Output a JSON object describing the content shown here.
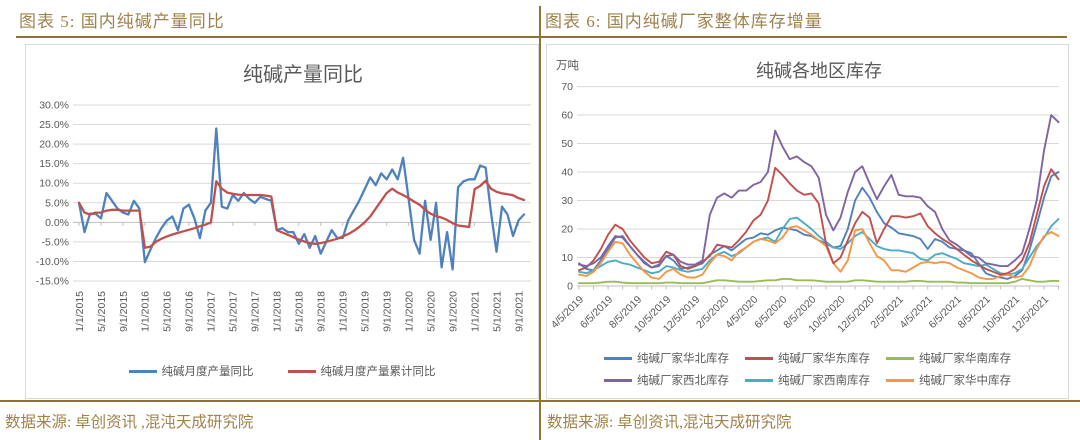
{
  "accent": {
    "gold_text": "#a0824c",
    "gold_line": "#8f7330",
    "grid": "#d9d9d9",
    "axis": "#bfbfbf",
    "label": "#595959"
  },
  "panels": [
    {
      "header": "图表 5: 国内纯碱产量同比",
      "source": "数据来源: 卓创资讯 ,混沌天成研究院"
    },
    {
      "header": "图表 6: 国内纯碱厂家整体库存增量",
      "source": "数据来源: 卓创资讯,混沌天成研究院"
    }
  ],
  "chart_data": [
    {
      "type": "line",
      "title": "纯碱产量同比",
      "ylim": [
        -15,
        30
      ],
      "ystep": 5,
      "grid": true,
      "legend_position": "bottom",
      "y_tick_labels": [
        "30.0%",
        "25.0%",
        "20.0%",
        "15.0%",
        "10.0%",
        "5.0%",
        "0.0%",
        "-5.0%",
        "-10.0%",
        "-15.0%"
      ],
      "x_labels": [
        "1/1/2015",
        "5/1/2015",
        "9/1/2015",
        "1/1/2016",
        "5/1/2016",
        "9/1/2016",
        "1/1/2017",
        "5/1/2017",
        "9/1/2017",
        "1/1/2018",
        "5/1/2018",
        "9/1/2018",
        "1/1/2019",
        "5/1/2019",
        "9/1/2019",
        "1/1/2020",
        "5/1/2020",
        "9/1/2020",
        "1/1/2021",
        "5/1/2021",
        "9/1/2021"
      ],
      "x_label_every_n_points": 4,
      "series": [
        {
          "name": "纯碱月度产量同比",
          "color": "#4F81BD",
          "values": [
            5.0,
            -2.5,
            2.2,
            2.2,
            1.0,
            7.5,
            5.5,
            3.5,
            2.5,
            2.0,
            5.5,
            3.5,
            -10.2,
            -7.0,
            -4.0,
            -1.5,
            0.5,
            1.5,
            -2.0,
            3.5,
            4.5,
            1.0,
            -4.0,
            3.0,
            5.0,
            24.0,
            4.0,
            3.5,
            7.0,
            5.5,
            7.5,
            6.0,
            5.0,
            6.5,
            6.0,
            5.5,
            -2.0,
            -1.5,
            -2.5,
            -2.5,
            -5.5,
            -3.0,
            -6.5,
            -3.5,
            -8.0,
            -5.0,
            -2.0,
            -4.0,
            -4.0,
            0.5,
            3.0,
            5.5,
            8.5,
            11.5,
            9.5,
            12.5,
            11.0,
            13.5,
            11.0,
            16.5,
            6.0,
            -4.5,
            -8.0,
            5.5,
            -4.5,
            5.0,
            -11.5,
            -2.5,
            -12.0,
            9.0,
            10.5,
            11.0,
            11.0,
            14.5,
            14.0,
            2.5,
            -7.5,
            4.0,
            2.0,
            -3.5,
            0.5,
            2.0
          ]
        },
        {
          "name": "纯碱月度产量累计同比",
          "color": "#C0504D",
          "values": [
            5.0,
            2.5,
            2.0,
            2.5,
            2.5,
            3.0,
            3.2,
            3.2,
            3.0,
            3.0,
            3.0,
            3.0,
            -6.5,
            -6.2,
            -5.0,
            -4.2,
            -3.6,
            -3.1,
            -2.7,
            -2.3,
            -1.9,
            -1.5,
            -1.0,
            -0.6,
            0.0,
            10.5,
            8.6,
            7.6,
            7.3,
            7.1,
            7.0,
            7.0,
            7.0,
            7.0,
            6.8,
            6.6,
            -2.0,
            -2.6,
            -3.2,
            -3.8,
            -4.4,
            -4.9,
            -5.3,
            -5.5,
            -5.3,
            -5.0,
            -4.6,
            -4.2,
            -3.6,
            -3.0,
            -2.2,
            -1.2,
            0.0,
            1.5,
            3.5,
            5.5,
            7.5,
            8.6,
            7.6,
            7.0,
            6.2,
            5.3,
            4.5,
            3.2,
            2.2,
            1.6,
            1.2,
            0.6,
            -0.2,
            -0.8,
            -1.0,
            -1.2,
            8.5,
            9.3,
            10.6,
            8.6,
            7.8,
            7.4,
            7.2,
            6.9,
            6.2,
            5.7
          ]
        }
      ]
    },
    {
      "type": "line",
      "title": "纯碱各地区库存",
      "unit_label": "万吨",
      "ylim": [
        0,
        70
      ],
      "ystep": 10,
      "grid": true,
      "legend_position": "bottom",
      "y_tick_labels": [
        "70",
        "60",
        "50",
        "40",
        "30",
        "20",
        "10",
        "0"
      ],
      "x_labels": [
        "4/5/2019",
        "6/5/2019",
        "8/5/2019",
        "10/5/2019",
        "12/5/2019",
        "2/5/2020",
        "4/5/2020",
        "6/5/2020",
        "8/5/2020",
        "10/5/2020",
        "12/5/2020",
        "2/5/2021",
        "4/5/2021",
        "6/5/2021",
        "8/5/2021",
        "10/5/2021",
        "12/5/2021"
      ],
      "months_per_x_label": 2,
      "points_per_month": 2,
      "series": [
        {
          "name": "纯碱厂家华北库存",
          "color": "#4F81BD",
          "values": [
            8,
            6,
            5.5,
            9,
            13,
            17,
            17.5,
            14,
            11,
            8.5,
            6.5,
            7.5,
            10.5,
            9,
            6,
            6.5,
            7,
            8,
            11,
            12.5,
            14,
            12.5,
            14.5,
            16.5,
            17,
            18.5,
            18,
            19.5,
            20.5,
            20,
            19.5,
            18,
            17.5,
            16,
            15,
            13.5,
            14,
            20,
            30,
            34.5,
            31,
            26,
            22,
            20.5,
            18.5,
            18,
            17.5,
            16.5,
            13,
            16.5,
            15.5,
            13.5,
            13,
            12.5,
            11.5,
            8,
            4.5,
            3.5,
            3,
            2.5,
            3.5,
            5.5,
            12.5,
            21.5,
            31,
            38.5,
            40
          ]
        },
        {
          "name": "纯碱厂家华东库存",
          "color": "#C0504D",
          "values": [
            5.5,
            6.5,
            9,
            13,
            18,
            21.5,
            20,
            16,
            13,
            10,
            8,
            8.5,
            12,
            11,
            7,
            6,
            7,
            8.5,
            10.5,
            14.5,
            14,
            13.5,
            16,
            19,
            23,
            25,
            30,
            41.5,
            39,
            36,
            33.5,
            32,
            32.5,
            29,
            15,
            8,
            10,
            16,
            22,
            26,
            24,
            15,
            20,
            24.5,
            24.5,
            24,
            24.5,
            25.5,
            21,
            18.5,
            16.5,
            15,
            13,
            11,
            9,
            7.5,
            6,
            5,
            4,
            4.5,
            6,
            9,
            15,
            25,
            35,
            41,
            37.5
          ]
        },
        {
          "name": "纯碱厂家华南库存",
          "color": "#9BBB59",
          "values": [
            1,
            1,
            1,
            1.2,
            1.5,
            1.5,
            1.2,
            1,
            1,
            1,
            1,
            1,
            1.2,
            1.2,
            1,
            1,
            1,
            1,
            1.5,
            2,
            2,
            1.8,
            1.5,
            1.5,
            1.5,
            1.8,
            2,
            2,
            2.5,
            2.5,
            2,
            2,
            2,
            1.8,
            1.5,
            1.5,
            1.5,
            1.5,
            2,
            2,
            1.8,
            1.5,
            1.5,
            1.5,
            1.5,
            1.5,
            1.8,
            1.8,
            1.5,
            1.5,
            1.5,
            1.5,
            1.2,
            1.2,
            1,
            1,
            1,
            1,
            1,
            1,
            1.5,
            2.5,
            2,
            1.5,
            1.5,
            1.8,
            1.8
          ]
        },
        {
          "name": "纯碱厂家西北库存",
          "color": "#8064A2",
          "values": [
            7.5,
            7,
            8,
            10,
            14,
            17.5,
            17,
            14,
            11,
            8,
            6.5,
            7,
            10.5,
            11,
            8.5,
            7.5,
            7.5,
            9,
            25,
            31,
            32.5,
            31,
            33.5,
            33.5,
            35.5,
            36.5,
            40,
            54.5,
            49,
            44.5,
            45.5,
            43.5,
            42,
            38,
            25,
            19.5,
            24,
            33,
            40,
            42,
            36,
            30.5,
            35,
            39,
            32,
            31.5,
            31.5,
            31,
            28,
            26,
            20,
            16,
            14.5,
            12.5,
            10.5,
            10,
            8,
            7.5,
            7,
            7,
            9,
            11.5,
            20,
            30,
            47.5,
            60,
            57.5
          ]
        },
        {
          "name": "纯碱厂家西南库存",
          "color": "#4BACC6",
          "values": [
            5,
            4.5,
            5.5,
            7,
            8.5,
            9,
            8,
            7.5,
            6.5,
            5.5,
            4.5,
            5,
            7,
            6.5,
            5.5,
            5,
            5.5,
            6,
            9,
            11,
            12,
            10.5,
            11.5,
            13.5,
            15.5,
            16.5,
            17,
            15.5,
            20,
            23.5,
            24,
            22,
            20,
            17.5,
            15.5,
            13.5,
            13,
            15,
            17.5,
            19,
            16.5,
            14,
            13,
            12.5,
            12.5,
            12,
            11.5,
            9.5,
            9,
            11,
            11.5,
            10.5,
            9.5,
            8,
            7.5,
            7,
            7.5,
            6,
            4.5,
            4,
            4.5,
            6,
            10,
            14,
            17,
            21,
            23.5
          ]
        },
        {
          "name": "纯碱厂家华中库存",
          "color": "#F79646",
          "values": [
            4,
            3.5,
            5,
            8,
            12,
            15.5,
            15,
            11,
            8,
            5,
            3,
            2.5,
            5,
            6,
            4,
            3,
            3,
            4,
            8,
            11,
            10.5,
            9,
            12,
            13.5,
            15.5,
            16.5,
            16,
            15,
            17,
            20.5,
            21,
            19.5,
            18,
            16,
            14,
            8,
            5,
            9,
            19.5,
            20,
            15,
            10.5,
            9,
            5.5,
            5.5,
            5,
            6.5,
            8,
            8.5,
            8,
            8.5,
            8,
            6.5,
            5.5,
            4.5,
            3,
            2.5,
            2.5,
            3.5,
            4,
            3,
            3.5,
            7,
            13,
            17.5,
            19,
            17.5
          ]
        }
      ]
    }
  ]
}
